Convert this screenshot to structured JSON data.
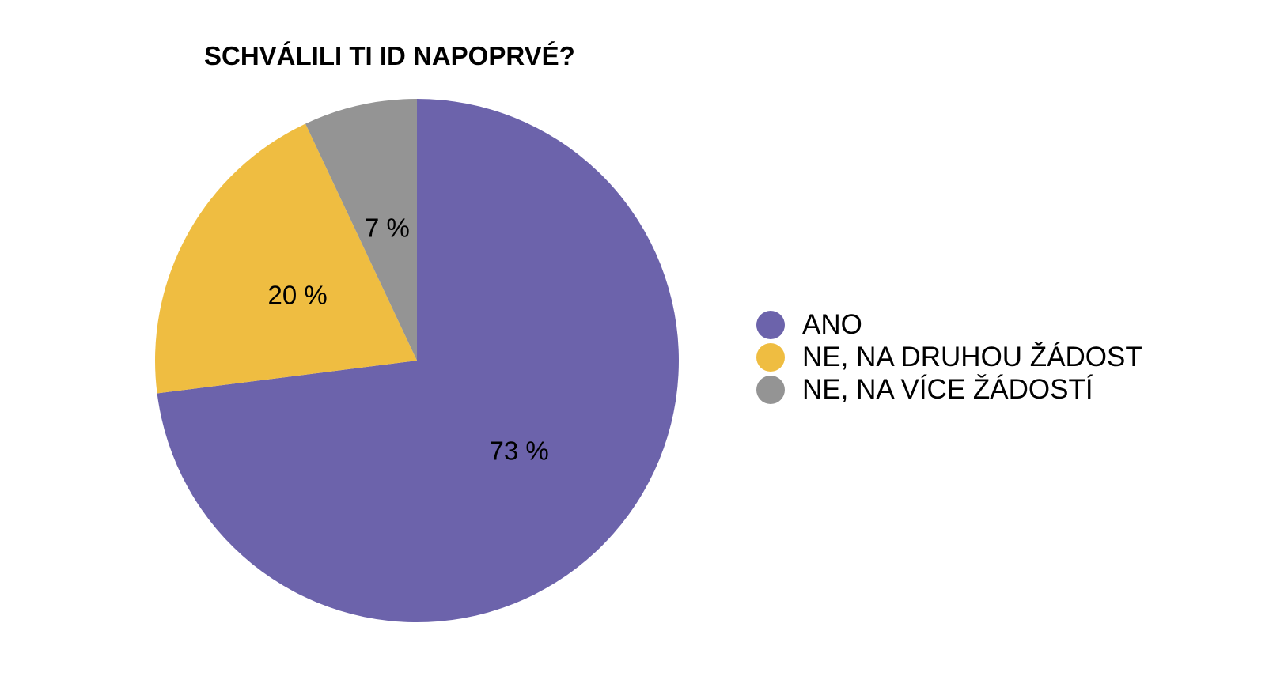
{
  "chart_data": {
    "type": "pie",
    "title": "SCHVÁLILI TI ID NAPOPRVÉ?",
    "slices": [
      {
        "label": "ANO",
        "value": 73,
        "display": "73 %",
        "color": "#6C63AB"
      },
      {
        "label": "NE, NA DRUHOU ŽÁDOST",
        "value": 20,
        "display": "20 %",
        "color": "#EFBD41"
      },
      {
        "label": "NE, NA VÍCE ŽÁDOSTÍ",
        "value": 7,
        "display": "7 %",
        "color": "#949494"
      }
    ],
    "start_angle": "12 o'clock",
    "direction": "clockwise",
    "legend_position": "right"
  }
}
